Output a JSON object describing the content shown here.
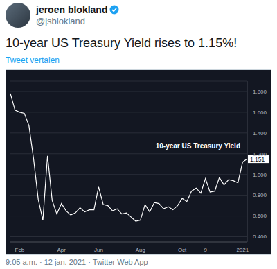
{
  "tweet": {
    "name": "jeroen blokland",
    "handle": "@jsblokland",
    "text": "10-year US Treasury Yield rises to 1.15%!",
    "translate": "Tweet vertalen",
    "footer": "9:05 a.m. · 12 jan. 2021 · Twitter Web App"
  },
  "chart_data": {
    "type": "line",
    "categories": [
      null,
      null,
      "Feb",
      null,
      null,
      null,
      null,
      null,
      null,
      null,
      null,
      "Apr",
      null,
      null,
      null,
      null,
      null,
      null,
      null,
      "Jun",
      null,
      null,
      null,
      null,
      null,
      null,
      null,
      null,
      "Aug",
      null,
      null,
      null,
      null,
      null,
      null,
      null,
      null,
      "Oct",
      null,
      null,
      null,
      null,
      "9",
      null,
      null,
      null,
      null,
      null,
      null,
      null,
      "2021",
      null
    ],
    "series": [
      {
        "name": "10-year US Treasury Yield",
        "color": "#ffffff",
        "values": [
          1.78,
          1.62,
          1.6,
          1.59,
          1.47,
          1.15,
          0.76,
          0.56,
          1.18,
          0.75,
          0.62,
          0.72,
          0.65,
          0.61,
          0.63,
          0.68,
          0.64,
          0.66,
          0.66,
          0.88,
          0.71,
          0.7,
          0.65,
          0.67,
          0.62,
          0.63,
          0.59,
          0.55,
          0.56,
          0.71,
          0.64,
          0.73,
          0.72,
          0.67,
          0.69,
          0.66,
          0.7,
          0.77,
          0.74,
          0.84,
          0.87,
          0.82,
          0.96,
          0.83,
          0.84,
          0.97,
          0.9,
          0.95,
          0.94,
          0.92,
          1.12,
          1.151
        ]
      }
    ],
    "ylim": [
      0.35,
      1.9
    ],
    "yticks": [
      {
        "value": 0.4,
        "label": "0.400"
      },
      {
        "value": 0.6,
        "label": "0.600"
      },
      {
        "value": 0.8,
        "label": "0.800"
      },
      {
        "value": 1.0,
        "label": "1.000"
      },
      {
        "value": 1.2,
        "label": "1.200"
      },
      {
        "value": 1.4,
        "label": "1.400"
      },
      {
        "value": 1.6,
        "label": "1.600"
      },
      {
        "value": 1.8,
        "label": "1.800"
      }
    ],
    "grid": true,
    "annotations": [
      "10-year US Treasury Yield",
      "1.151"
    ]
  }
}
